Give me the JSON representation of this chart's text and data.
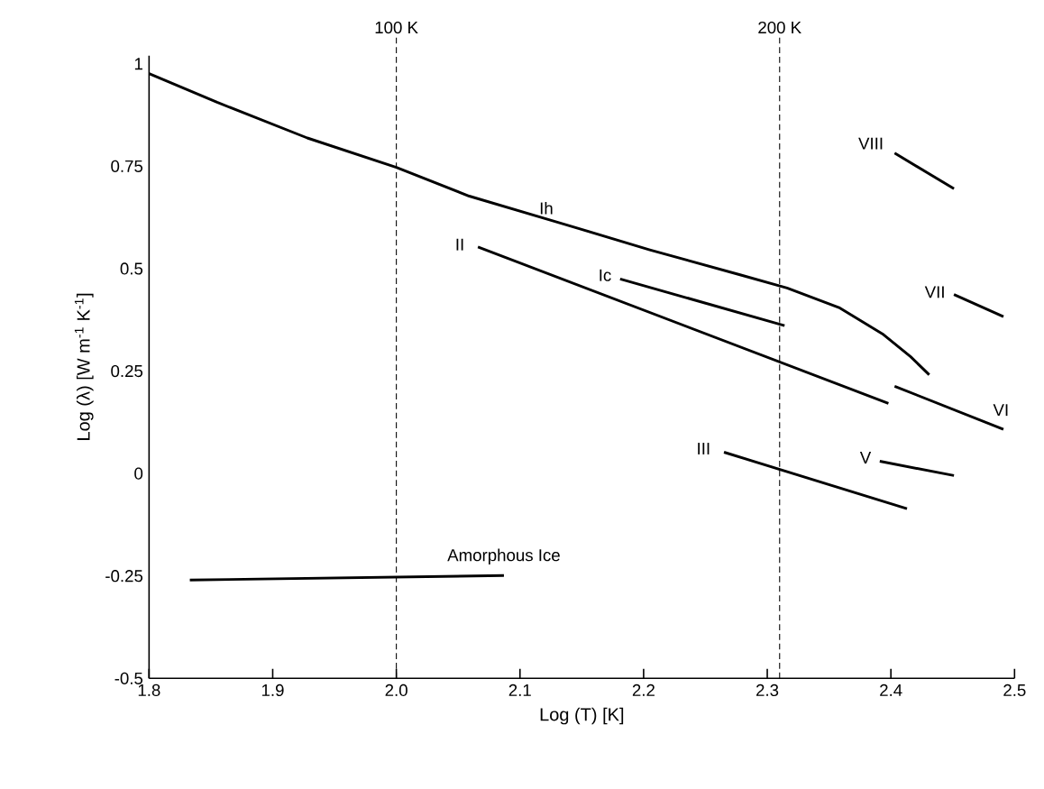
{
  "chart_data": {
    "type": "line",
    "xlabel": "Log (T) [K]",
    "ylabel": "Log (λ) [W m$^{-1}$ K$^{-1}$]",
    "xlim": [
      1.8,
      2.5
    ],
    "ylim": [
      -0.5,
      1.02
    ],
    "xticks": [
      1.8,
      1.9,
      {
        "value": 2,
        "label": "2.0"
      },
      2.1,
      2.2,
      2.3,
      2.4,
      2.5
    ],
    "yticks": [
      -0.5,
      -0.25,
      0,
      0.25,
      0.5,
      0.75,
      1
    ],
    "grid": false,
    "line_style": "solid",
    "series": [
      {
        "name": "Ih",
        "color": "#000000",
        "x": [
          1.8,
          1.855,
          1.928,
          2.0,
          2.059,
          2.132,
          2.205,
          2.278,
          2.316,
          2.358,
          2.394,
          2.416,
          2.431
        ],
        "values": [
          0.976,
          0.906,
          0.819,
          0.747,
          0.677,
          0.612,
          0.546,
          0.485,
          0.453,
          0.405,
          0.339,
          0.285,
          0.241
        ]
      },
      {
        "name": "II",
        "color": "#000000",
        "x": [
          2.066,
          2.398
        ],
        "values": [
          0.553,
          0.171
        ]
      },
      {
        "name": "Ic",
        "color": "#000000",
        "x": [
          2.181,
          2.314
        ],
        "values": [
          0.475,
          0.361
        ]
      },
      {
        "name": "VI",
        "color": "#000000",
        "x": [
          2.403,
          2.491
        ],
        "values": [
          0.213,
          0.108
        ]
      },
      {
        "name": "III",
        "color": "#000000",
        "x": [
          2.265,
          2.413
        ],
        "values": [
          0.052,
          -0.086
        ]
      },
      {
        "name": "V",
        "color": "#000000",
        "x": [
          2.391,
          2.451
        ],
        "values": [
          0.03,
          -0.005
        ]
      },
      {
        "name": "VII",
        "color": "#000000",
        "x": [
          2.451,
          2.491
        ],
        "values": [
          0.437,
          0.383
        ]
      },
      {
        "name": "VIII",
        "color": "#000000",
        "x": [
          2.403,
          2.451
        ],
        "values": [
          0.782,
          0.695
        ]
      },
      {
        "name": "Amorphous Ice",
        "color": "#000000",
        "x": [
          1.833,
          2.087
        ],
        "values": [
          -0.26,
          -0.249
        ]
      }
    ],
    "ref_lines": [
      {
        "axis": "x",
        "value": 2.0,
        "label": "100 K",
        "color": "#000000",
        "line_style": "dashed"
      },
      {
        "axis": "x",
        "value": 2.31,
        "label": "200 K",
        "color": "#000000",
        "line_style": "dashed"
      }
    ]
  }
}
